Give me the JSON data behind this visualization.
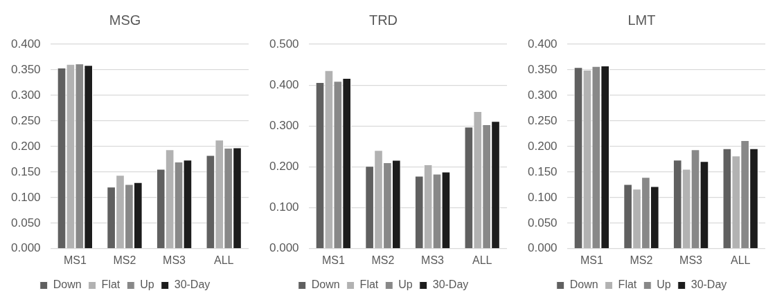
{
  "chart_data": [
    {
      "type": "bar",
      "title": "MSG",
      "categories": [
        "MS1",
        "MS2",
        "MS3",
        "ALL"
      ],
      "series": [
        {
          "name": "Down",
          "color": "#606060",
          "values": [
            0.354,
            0.121,
            0.156,
            0.183
          ]
        },
        {
          "name": "Flat",
          "color": "#b2b2b2",
          "values": [
            0.361,
            0.144,
            0.194,
            0.213
          ]
        },
        {
          "name": "Up",
          "color": "#888888",
          "values": [
            0.362,
            0.126,
            0.17,
            0.197
          ]
        },
        {
          "name": "30-Day",
          "color": "#1c1c1c",
          "values": [
            0.359,
            0.13,
            0.174,
            0.198
          ]
        }
      ],
      "ylim": [
        0,
        0.4
      ],
      "yticks": [
        {
          "value": 0,
          "label": "0.000"
        },
        {
          "value": 0.05,
          "label": "0.050"
        },
        {
          "value": 0.1,
          "label": "0.100"
        },
        {
          "value": 0.15,
          "label": "0.150"
        },
        {
          "value": 0.2,
          "label": "0.200"
        },
        {
          "value": 0.25,
          "label": "0.250"
        },
        {
          "value": 0.3,
          "label": "0.300"
        },
        {
          "value": 0.35,
          "label": "0.350"
        },
        {
          "value": 0.4,
          "label": "0.400"
        }
      ],
      "grid": "y",
      "legend": "bottom"
    },
    {
      "type": "bar",
      "title": "TRD",
      "categories": [
        "MS1",
        "MS2",
        "MS3",
        "ALL"
      ],
      "series": [
        {
          "name": "Down",
          "color": "#606060",
          "values": [
            0.407,
            0.202,
            0.178,
            0.298
          ]
        },
        {
          "name": "Flat",
          "color": "#b2b2b2",
          "values": [
            0.436,
            0.241,
            0.206,
            0.336
          ]
        },
        {
          "name": "Up",
          "color": "#888888",
          "values": [
            0.41,
            0.211,
            0.183,
            0.304
          ]
        },
        {
          "name": "30-Day",
          "color": "#1c1c1c",
          "values": [
            0.417,
            0.217,
            0.188,
            0.312
          ]
        }
      ],
      "ylim": [
        0,
        0.5
      ],
      "yticks": [
        {
          "value": 0,
          "label": "0.000"
        },
        {
          "value": 0.1,
          "label": "0.100"
        },
        {
          "value": 0.2,
          "label": "0.200"
        },
        {
          "value": 0.3,
          "label": "0.300"
        },
        {
          "value": 0.4,
          "label": "0.400"
        },
        {
          "value": 0.5,
          "label": "0.500"
        }
      ],
      "grid": "y",
      "legend": "bottom"
    },
    {
      "type": "bar",
      "title": "LMT",
      "categories": [
        "MS1",
        "MS2",
        "MS3",
        "ALL"
      ],
      "series": [
        {
          "name": "Down",
          "color": "#606060",
          "values": [
            0.355,
            0.126,
            0.174,
            0.196
          ]
        },
        {
          "name": "Flat",
          "color": "#b2b2b2",
          "values": [
            0.35,
            0.117,
            0.156,
            0.182
          ]
        },
        {
          "name": "Up",
          "color": "#888888",
          "values": [
            0.357,
            0.14,
            0.194,
            0.212
          ]
        },
        {
          "name": "30-Day",
          "color": "#1c1c1c",
          "values": [
            0.358,
            0.122,
            0.171,
            0.196
          ]
        }
      ],
      "ylim": [
        0,
        0.4
      ],
      "yticks": [
        {
          "value": 0,
          "label": "0.000"
        },
        {
          "value": 0.05,
          "label": "0.050"
        },
        {
          "value": 0.1,
          "label": "0.100"
        },
        {
          "value": 0.15,
          "label": "0.150"
        },
        {
          "value": 0.2,
          "label": "0.200"
        },
        {
          "value": 0.25,
          "label": "0.250"
        },
        {
          "value": 0.3,
          "label": "0.300"
        },
        {
          "value": 0.35,
          "label": "0.350"
        },
        {
          "value": 0.4,
          "label": "0.400"
        }
      ],
      "grid": "y",
      "legend": "bottom"
    }
  ]
}
